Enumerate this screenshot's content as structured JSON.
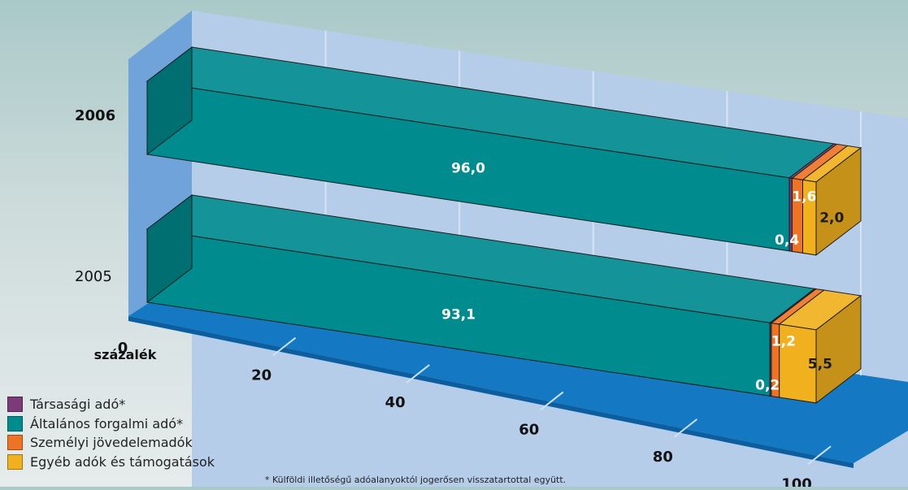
{
  "chart_data": {
    "type": "bar",
    "orientation": "horizontal",
    "stacked": true,
    "three_d": true,
    "categories": [
      "2006",
      "2005"
    ],
    "series": [
      {
        "name": "Általános forgalmi adó*",
        "color": "#008b8f",
        "values": [
          96.0,
          93.1
        ],
        "labels": [
          "96,0",
          "93,1"
        ]
      },
      {
        "name": "Társasági adó*",
        "color": "#7b3a78",
        "values": [
          0.4,
          0.2
        ],
        "labels": [
          "0,4",
          "0,2"
        ]
      },
      {
        "name": "Személyi jövedelemadók",
        "color": "#ee7324",
        "values": [
          1.6,
          1.2
        ],
        "labels": [
          "1,6",
          "1,2"
        ]
      },
      {
        "name": "Egyéb adók és támogatások",
        "color": "#f1b11f",
        "values": [
          2.0,
          5.5
        ],
        "labels": [
          "2,0",
          "5,5"
        ]
      }
    ],
    "x_ticks": [
      "0",
      "20",
      "40",
      "60",
      "80",
      "100"
    ],
    "x_tick_values": [
      0,
      20,
      40,
      60,
      80,
      100
    ],
    "xlim": [
      0,
      100
    ],
    "xlabel": "százalék",
    "grid": true,
    "legend_position": "bottom-left"
  },
  "legend": {
    "items": [
      {
        "label": "Társasági adó*",
        "color": "#7b3a78"
      },
      {
        "label": "Általános forgalmi adó*",
        "color": "#008b8f"
      },
      {
        "label": "Személyi jövedelemadók",
        "color": "#ee7324"
      },
      {
        "label": "Egyéb adók és támogatások",
        "color": "#f1b11f"
      }
    ]
  },
  "footnote": "* Külföldi illetőségű adóalanyoktól jogerősen visszatartottal együtt."
}
